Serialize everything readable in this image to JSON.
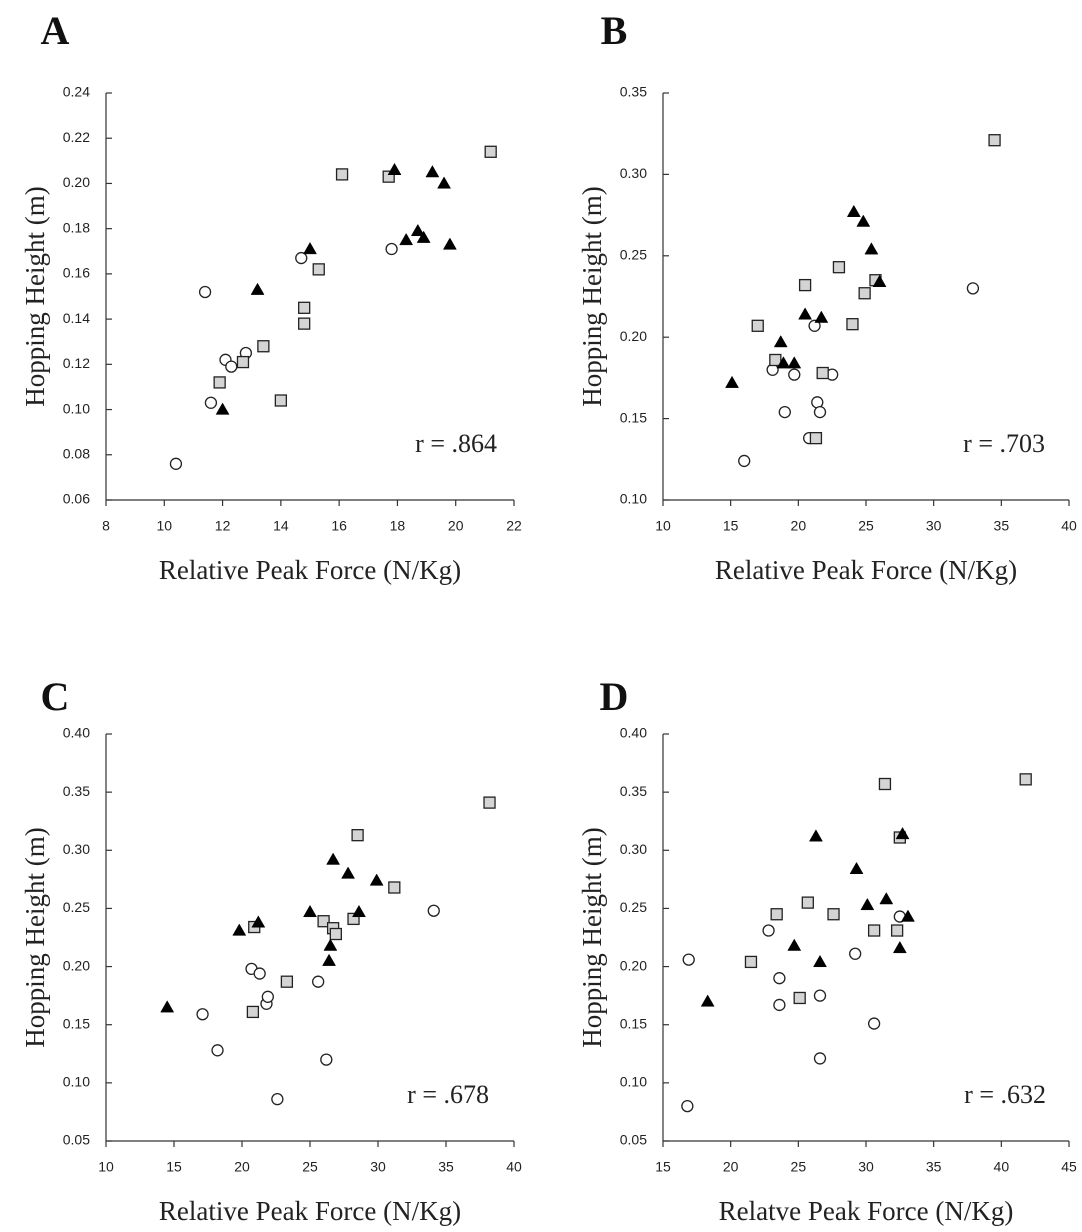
{
  "chart_data": [
    {
      "panel": "A",
      "type": "scatter",
      "xlabel": "Relative Peak Force (N/Kg)",
      "ylabel": "Hopping Height (m)",
      "xlim": [
        8,
        22
      ],
      "ylim": [
        0.06,
        0.24
      ],
      "xticks": [
        "8",
        "10",
        "12",
        "14",
        "16",
        "18",
        "20",
        "22"
      ],
      "yticks": [
        "0.06",
        "0.08",
        "0.10",
        "0.12",
        "0.14",
        "0.16",
        "0.18",
        "0.20",
        "0.22",
        "0.24"
      ],
      "annotation": "r = .864",
      "series": [
        {
          "marker": "circle",
          "points": [
            [
              10.4,
              0.076
            ],
            [
              11.4,
              0.152
            ],
            [
              11.6,
              0.103
            ],
            [
              12.1,
              0.122
            ],
            [
              12.3,
              0.119
            ],
            [
              12.8,
              0.125
            ],
            [
              14.7,
              0.167
            ],
            [
              17.8,
              0.171
            ]
          ]
        },
        {
          "marker": "square",
          "points": [
            [
              11.9,
              0.112
            ],
            [
              12.7,
              0.121
            ],
            [
              13.4,
              0.128
            ],
            [
              14.0,
              0.104
            ],
            [
              14.8,
              0.145
            ],
            [
              14.8,
              0.138
            ],
            [
              15.3,
              0.162
            ],
            [
              16.1,
              0.204
            ],
            [
              17.7,
              0.203
            ],
            [
              21.2,
              0.214
            ]
          ]
        },
        {
          "marker": "triangle",
          "points": [
            [
              12.0,
              0.1
            ],
            [
              13.2,
              0.153
            ],
            [
              15.0,
              0.171
            ],
            [
              17.9,
              0.206
            ],
            [
              18.3,
              0.175
            ],
            [
              18.7,
              0.179
            ],
            [
              18.9,
              0.176
            ],
            [
              19.2,
              0.205
            ],
            [
              19.6,
              0.2
            ],
            [
              19.8,
              0.173
            ]
          ]
        }
      ]
    },
    {
      "panel": "B",
      "type": "scatter",
      "xlabel": "Relative Peak Force (N/Kg)",
      "ylabel": "Hopping Height (m)",
      "xlim": [
        10,
        40
      ],
      "ylim": [
        0.1,
        0.35
      ],
      "xticks": [
        "10",
        "15",
        "20",
        "25",
        "30",
        "35",
        "40"
      ],
      "yticks": [
        "0.10",
        "0.15",
        "0.20",
        "0.25",
        "0.30",
        "0.35"
      ],
      "annotation": "r = .703",
      "series": [
        {
          "marker": "circle",
          "points": [
            [
              16.0,
              0.124
            ],
            [
              18.1,
              0.18
            ],
            [
              19.0,
              0.154
            ],
            [
              19.7,
              0.177
            ],
            [
              20.8,
              0.138
            ],
            [
              21.2,
              0.207
            ],
            [
              21.4,
              0.16
            ],
            [
              21.6,
              0.154
            ],
            [
              22.5,
              0.177
            ],
            [
              32.9,
              0.23
            ]
          ]
        },
        {
          "marker": "square",
          "points": [
            [
              17.0,
              0.207
            ],
            [
              18.3,
              0.186
            ],
            [
              20.5,
              0.232
            ],
            [
              21.3,
              0.138
            ],
            [
              21.8,
              0.178
            ],
            [
              23.0,
              0.243
            ],
            [
              24.0,
              0.208
            ],
            [
              24.9,
              0.227
            ],
            [
              25.7,
              0.235
            ],
            [
              34.5,
              0.321
            ]
          ]
        },
        {
          "marker": "triangle",
          "points": [
            [
              15.1,
              0.172
            ],
            [
              18.7,
              0.197
            ],
            [
              18.9,
              0.184
            ],
            [
              19.7,
              0.184
            ],
            [
              20.5,
              0.214
            ],
            [
              21.7,
              0.212
            ],
            [
              24.1,
              0.277
            ],
            [
              24.8,
              0.271
            ],
            [
              25.4,
              0.254
            ],
            [
              26.0,
              0.234
            ]
          ]
        }
      ]
    },
    {
      "panel": "C",
      "type": "scatter",
      "xlabel": "Relative Peak Force (N/Kg)",
      "ylabel": "Hopping Height (m)",
      "xlim": [
        10,
        40
      ],
      "ylim": [
        0.05,
        0.4
      ],
      "xticks": [
        "10",
        "15",
        "20",
        "25",
        "30",
        "35",
        "40"
      ],
      "yticks": [
        "0.05",
        "0.10",
        "0.15",
        "0.20",
        "0.25",
        "0.30",
        "0.35",
        "0.40"
      ],
      "annotation": "r = .678",
      "series": [
        {
          "marker": "circle",
          "points": [
            [
              17.1,
              0.159
            ],
            [
              18.2,
              0.128
            ],
            [
              20.7,
              0.198
            ],
            [
              21.3,
              0.194
            ],
            [
              21.8,
              0.168
            ],
            [
              21.9,
              0.174
            ],
            [
              22.6,
              0.086
            ],
            [
              25.6,
              0.187
            ],
            [
              26.2,
              0.12
            ],
            [
              34.1,
              0.248
            ]
          ]
        },
        {
          "marker": "square",
          "points": [
            [
              20.8,
              0.161
            ],
            [
              20.9,
              0.234
            ],
            [
              23.3,
              0.187
            ],
            [
              26.0,
              0.239
            ],
            [
              26.7,
              0.233
            ],
            [
              26.9,
              0.228
            ],
            [
              28.2,
              0.241
            ],
            [
              28.5,
              0.313
            ],
            [
              31.2,
              0.268
            ],
            [
              38.2,
              0.341
            ]
          ]
        },
        {
          "marker": "triangle",
          "points": [
            [
              14.5,
              0.165
            ],
            [
              19.8,
              0.231
            ],
            [
              21.2,
              0.238
            ],
            [
              25.0,
              0.247
            ],
            [
              26.4,
              0.205
            ],
            [
              26.5,
              0.218
            ],
            [
              26.7,
              0.292
            ],
            [
              27.8,
              0.28
            ],
            [
              29.9,
              0.274
            ],
            [
              28.6,
              0.247
            ]
          ]
        }
      ]
    },
    {
      "panel": "D",
      "type": "scatter",
      "xlabel": "Relatve Peak Force (N/Kg)",
      "ylabel": "Hopping Height (m)",
      "xlim": [
        15,
        45
      ],
      "ylim": [
        0.05,
        0.4
      ],
      "xticks": [
        "15",
        "20",
        "25",
        "30",
        "35",
        "40",
        "45"
      ],
      "yticks": [
        "0.05",
        "0.10",
        "0.15",
        "0.20",
        "0.25",
        "0.30",
        "0.35",
        "0.40"
      ],
      "annotation": "r = .632",
      "series": [
        {
          "marker": "circle",
          "points": [
            [
              16.8,
              0.08
            ],
            [
              16.9,
              0.206
            ],
            [
              22.8,
              0.231
            ],
            [
              23.6,
              0.167
            ],
            [
              23.6,
              0.19
            ],
            [
              26.6,
              0.121
            ],
            [
              26.6,
              0.175
            ],
            [
              29.2,
              0.211
            ],
            [
              30.6,
              0.151
            ],
            [
              32.5,
              0.243
            ]
          ]
        },
        {
          "marker": "square",
          "points": [
            [
              21.5,
              0.204
            ],
            [
              23.4,
              0.245
            ],
            [
              25.1,
              0.173
            ],
            [
              25.7,
              0.255
            ],
            [
              27.6,
              0.245
            ],
            [
              30.6,
              0.231
            ],
            [
              31.4,
              0.357
            ],
            [
              32.3,
              0.231
            ],
            [
              32.5,
              0.311
            ],
            [
              41.8,
              0.361
            ]
          ]
        },
        {
          "marker": "triangle",
          "points": [
            [
              18.3,
              0.17
            ],
            [
              24.7,
              0.218
            ],
            [
              26.3,
              0.312
            ],
            [
              26.6,
              0.204
            ],
            [
              29.3,
              0.284
            ],
            [
              30.1,
              0.253
            ],
            [
              31.5,
              0.258
            ],
            [
              32.7,
              0.314
            ],
            [
              32.5,
              0.216
            ],
            [
              33.1,
              0.243
            ]
          ]
        }
      ]
    }
  ]
}
